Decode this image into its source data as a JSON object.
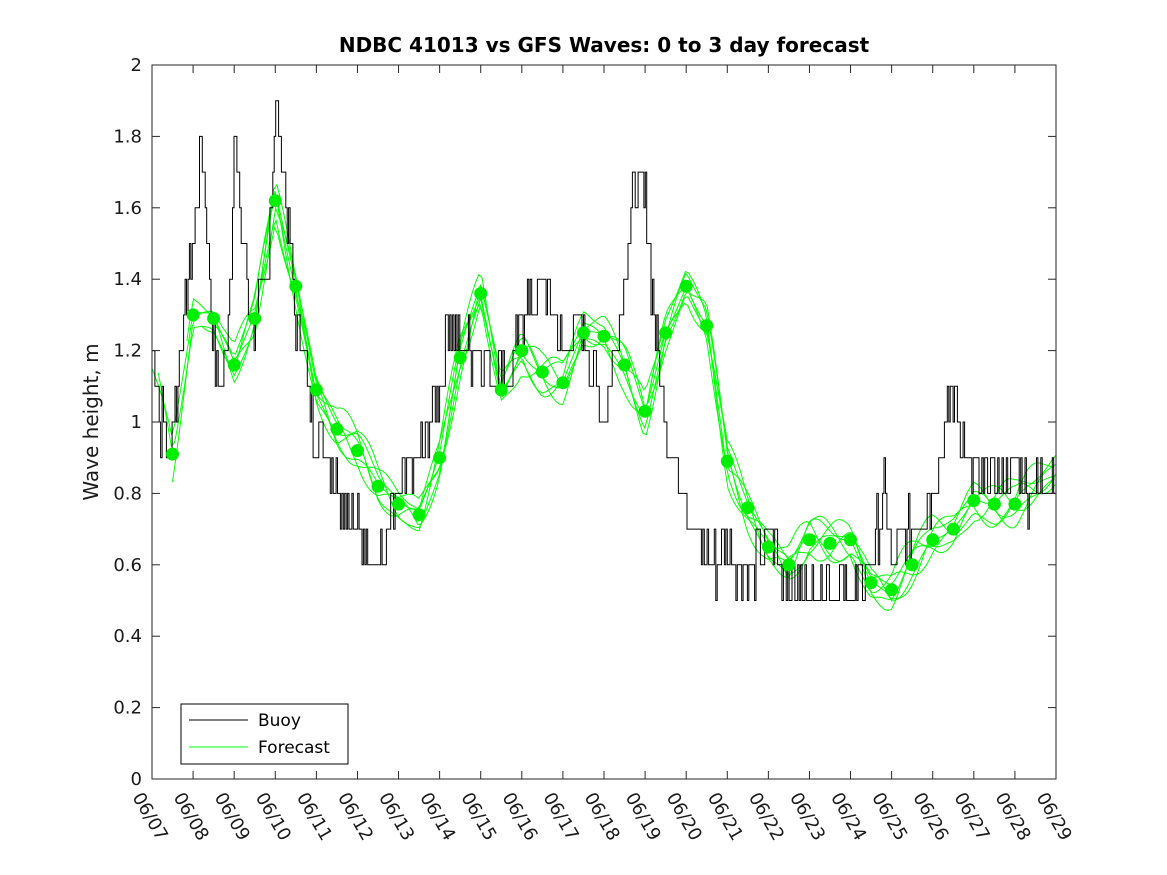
{
  "chart_data": {
    "type": "line",
    "title": "NDBC 41013 vs GFS Waves: 0 to 3 day forecast",
    "xlabel": "",
    "ylabel": "Wave height, m",
    "x_ticks": [
      "06/07",
      "06/08",
      "06/09",
      "06/10",
      "06/11",
      "06/12",
      "06/13",
      "06/14",
      "06/15",
      "06/16",
      "06/17",
      "06/18",
      "06/19",
      "06/20",
      "06/21",
      "06/22",
      "06/23",
      "06/24",
      "06/25",
      "06/26",
      "06/27",
      "06/28",
      "06/29"
    ],
    "xlim": [
      0,
      22
    ],
    "ylim": [
      0,
      2
    ],
    "y_ticks": [
      0,
      0.2,
      0.4,
      0.6,
      0.8,
      1,
      1.2,
      1.4,
      1.6,
      1.8,
      2
    ],
    "grid": false,
    "legend": {
      "position": "bottom-left",
      "entries": [
        "Buoy",
        "Forecast"
      ]
    },
    "colors": {
      "buoy": "#000000",
      "forecast": "#00ff00",
      "markers": "#00ee00"
    },
    "series": [
      {
        "name": "Buoy",
        "x": [
          0,
          0.1,
          0.2,
          0.3,
          0.4,
          0.5,
          0.6,
          0.8,
          1.0,
          1.2,
          1.3,
          1.5,
          1.7,
          1.9,
          2.0,
          2.2,
          2.4,
          2.6,
          2.8,
          3.0,
          3.2,
          3.35,
          3.5,
          3.7,
          3.9,
          4.1,
          4.3,
          4.6,
          5.0,
          5.5,
          6.0,
          6.5,
          6.8,
          7.0,
          7.2,
          7.5,
          8.0,
          8.3,
          8.5,
          8.7,
          9.0,
          9.5,
          10.0,
          10.4,
          10.6,
          10.8,
          11.0,
          11.2,
          11.5,
          11.8,
          12.0,
          12.3,
          12.5,
          12.7,
          13.0,
          13.2,
          13.4,
          13.6,
          13.8,
          14.0,
          14.2,
          14.5,
          15.0,
          15.5,
          16.0,
          16.5,
          17.0,
          17.5,
          17.8,
          18.0,
          18.5,
          19.0,
          19.2,
          19.5,
          19.8,
          20.0,
          20.2,
          20.4,
          20.6,
          20.8,
          21.0,
          21.3,
          21.6,
          22.0
        ],
        "y": [
          1.2,
          1.1,
          1.0,
          1.0,
          0.8,
          1.0,
          1.1,
          1.3,
          1.5,
          1.8,
          1.6,
          1.2,
          1.1,
          1.4,
          1.8,
          1.5,
          1.3,
          1.3,
          1.4,
          1.9,
          1.7,
          1.5,
          1.3,
          1.2,
          1.0,
          0.95,
          0.9,
          0.8,
          0.7,
          0.6,
          0.8,
          0.9,
          1.0,
          1.1,
          1.3,
          1.2,
          1.2,
          1.1,
          1.2,
          1.1,
          1.3,
          1.4,
          1.2,
          1.3,
          1.2,
          1.1,
          1.0,
          1.2,
          1.4,
          1.7,
          1.6,
          1.2,
          1.0,
          0.9,
          0.8,
          0.7,
          0.65,
          0.6,
          0.6,
          0.65,
          0.6,
          0.55,
          0.7,
          0.55,
          0.5,
          0.55,
          0.5,
          0.6,
          0.8,
          0.6,
          0.7,
          0.8,
          0.9,
          1.1,
          0.9,
          0.85,
          0.8,
          0.9,
          0.8,
          0.85,
          0.9,
          0.8,
          0.82,
          0.85
        ]
      },
      {
        "name": "Forecast",
        "markers": {
          "x": [
            0.5,
            1.0,
            1.5,
            2.0,
            2.5,
            3.0,
            3.5,
            4.0,
            4.5,
            5.0,
            5.5,
            6.0,
            6.5,
            7.0,
            7.5,
            8.0,
            8.5,
            9.0,
            9.5,
            10.0,
            10.5,
            11.0,
            11.5,
            12.0,
            12.5,
            13.0,
            13.5,
            14.0,
            14.5,
            15.0,
            15.5,
            16.0,
            16.5,
            17.0,
            17.5,
            18.0,
            18.5,
            19.0,
            19.5,
            20.0,
            20.5,
            21.0
          ],
          "y": [
            0.91,
            1.3,
            1.29,
            1.16,
            1.29,
            1.62,
            1.38,
            1.09,
            0.98,
            0.92,
            0.82,
            0.77,
            0.74,
            0.9,
            1.18,
            1.36,
            1.09,
            1.2,
            1.14,
            1.11,
            1.25,
            1.24,
            1.16,
            1.03,
            1.25,
            1.38,
            1.27,
            0.89,
            0.76,
            0.65,
            0.6,
            0.67,
            0.66,
            0.67,
            0.55,
            0.53,
            0.6,
            0.67,
            0.7,
            0.78,
            0.77,
            0.77
          ]
        }
      }
    ]
  }
}
